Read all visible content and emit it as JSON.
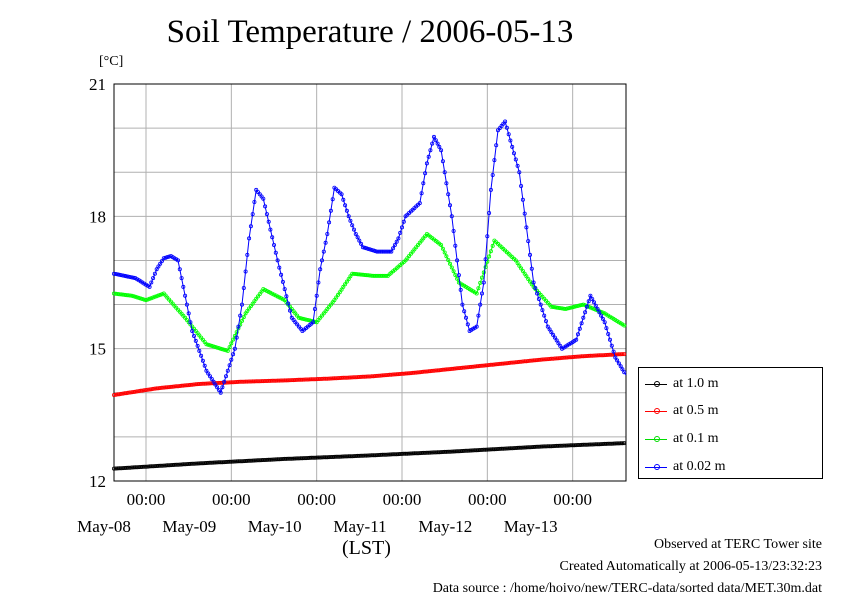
{
  "chart_data": {
    "type": "line",
    "title": "Soil Temperature / 2006-05-13",
    "ylabel": "[°C]",
    "xlabel": "(LST)",
    "ylim": [
      12,
      21
    ],
    "yticks": [
      12,
      15,
      18,
      21
    ],
    "x_unit": "hours since 2006-05-07 15:00 LST",
    "xlim": [
      0,
      144
    ],
    "xticks": [
      {
        "x": 9,
        "time": "00:00",
        "date": "May-08"
      },
      {
        "x": 33,
        "time": "00:00",
        "date": "May-09"
      },
      {
        "x": 57,
        "time": "00:00",
        "date": "May-10"
      },
      {
        "x": 81,
        "time": "00:00",
        "date": "May-11"
      },
      {
        "x": 105,
        "time": "00:00",
        "date": "May-12"
      },
      {
        "x": 129,
        "time": "00:00",
        "date": "May-13"
      }
    ],
    "grid": true,
    "legend_position": "right",
    "series": [
      {
        "name": "at 1.0 m",
        "color": "#000000",
        "x": [
          0,
          24,
          48,
          72,
          96,
          120,
          144
        ],
        "y": [
          12.28,
          12.4,
          12.5,
          12.58,
          12.67,
          12.78,
          12.86
        ]
      },
      {
        "name": "at 0.5 m",
        "color": "#ff0000",
        "x": [
          0,
          12,
          24,
          36,
          48,
          60,
          72,
          84,
          96,
          108,
          120,
          132,
          144
        ],
        "y": [
          13.95,
          14.1,
          14.2,
          14.25,
          14.28,
          14.32,
          14.37,
          14.45,
          14.55,
          14.65,
          14.75,
          14.83,
          14.88
        ]
      },
      {
        "name": "at 0.1 m",
        "color": "#00ff00",
        "x": [
          0,
          5,
          9,
          14,
          20,
          26,
          32,
          37,
          42,
          48,
          52,
          57,
          62,
          67,
          73,
          77,
          82,
          88,
          92,
          97,
          102,
          107,
          113,
          118,
          123,
          127,
          132,
          138,
          144
        ],
        "y": [
          16.25,
          16.2,
          16.1,
          16.25,
          15.7,
          15.1,
          14.95,
          15.8,
          16.35,
          16.1,
          15.7,
          15.6,
          16.1,
          16.7,
          16.65,
          16.65,
          17.0,
          17.6,
          17.35,
          16.5,
          16.25,
          17.45,
          17.0,
          16.4,
          15.95,
          15.9,
          16.0,
          15.8,
          15.5
        ]
      },
      {
        "name": "at 0.02 m",
        "color": "#0000ff",
        "x": [
          0,
          3,
          6,
          10,
          12,
          14,
          16,
          18,
          22,
          26,
          30,
          34,
          36,
          38,
          40,
          42,
          46,
          50,
          53,
          56,
          58,
          60,
          62,
          64,
          66,
          68,
          70,
          74,
          78,
          80,
          82,
          86,
          88,
          90,
          92,
          95,
          98,
          100,
          102,
          104,
          106,
          108,
          110,
          114,
          118,
          122,
          126,
          130,
          134,
          138,
          141,
          144
        ],
        "y": [
          16.7,
          16.65,
          16.6,
          16.4,
          16.8,
          17.05,
          17.1,
          17.0,
          15.4,
          14.5,
          14.0,
          15.0,
          16.0,
          17.5,
          18.6,
          18.4,
          17.0,
          15.7,
          15.4,
          15.6,
          16.8,
          17.6,
          18.65,
          18.5,
          18.0,
          17.6,
          17.3,
          17.2,
          17.2,
          17.5,
          18.0,
          18.3,
          19.2,
          19.8,
          19.5,
          18.0,
          16.0,
          15.4,
          15.5,
          16.5,
          18.6,
          19.95,
          20.15,
          19.0,
          16.5,
          15.5,
          15.0,
          15.2,
          16.2,
          15.6,
          14.8,
          14.4
        ]
      }
    ]
  },
  "footer": {
    "observed": "Observed at TERC Tower site",
    "created": "Created Automatically at 2006-05-13/23:32:23",
    "source": "Data source : /home/hoivo/new/TERC-data/sorted  data/MET.30m.dat"
  }
}
